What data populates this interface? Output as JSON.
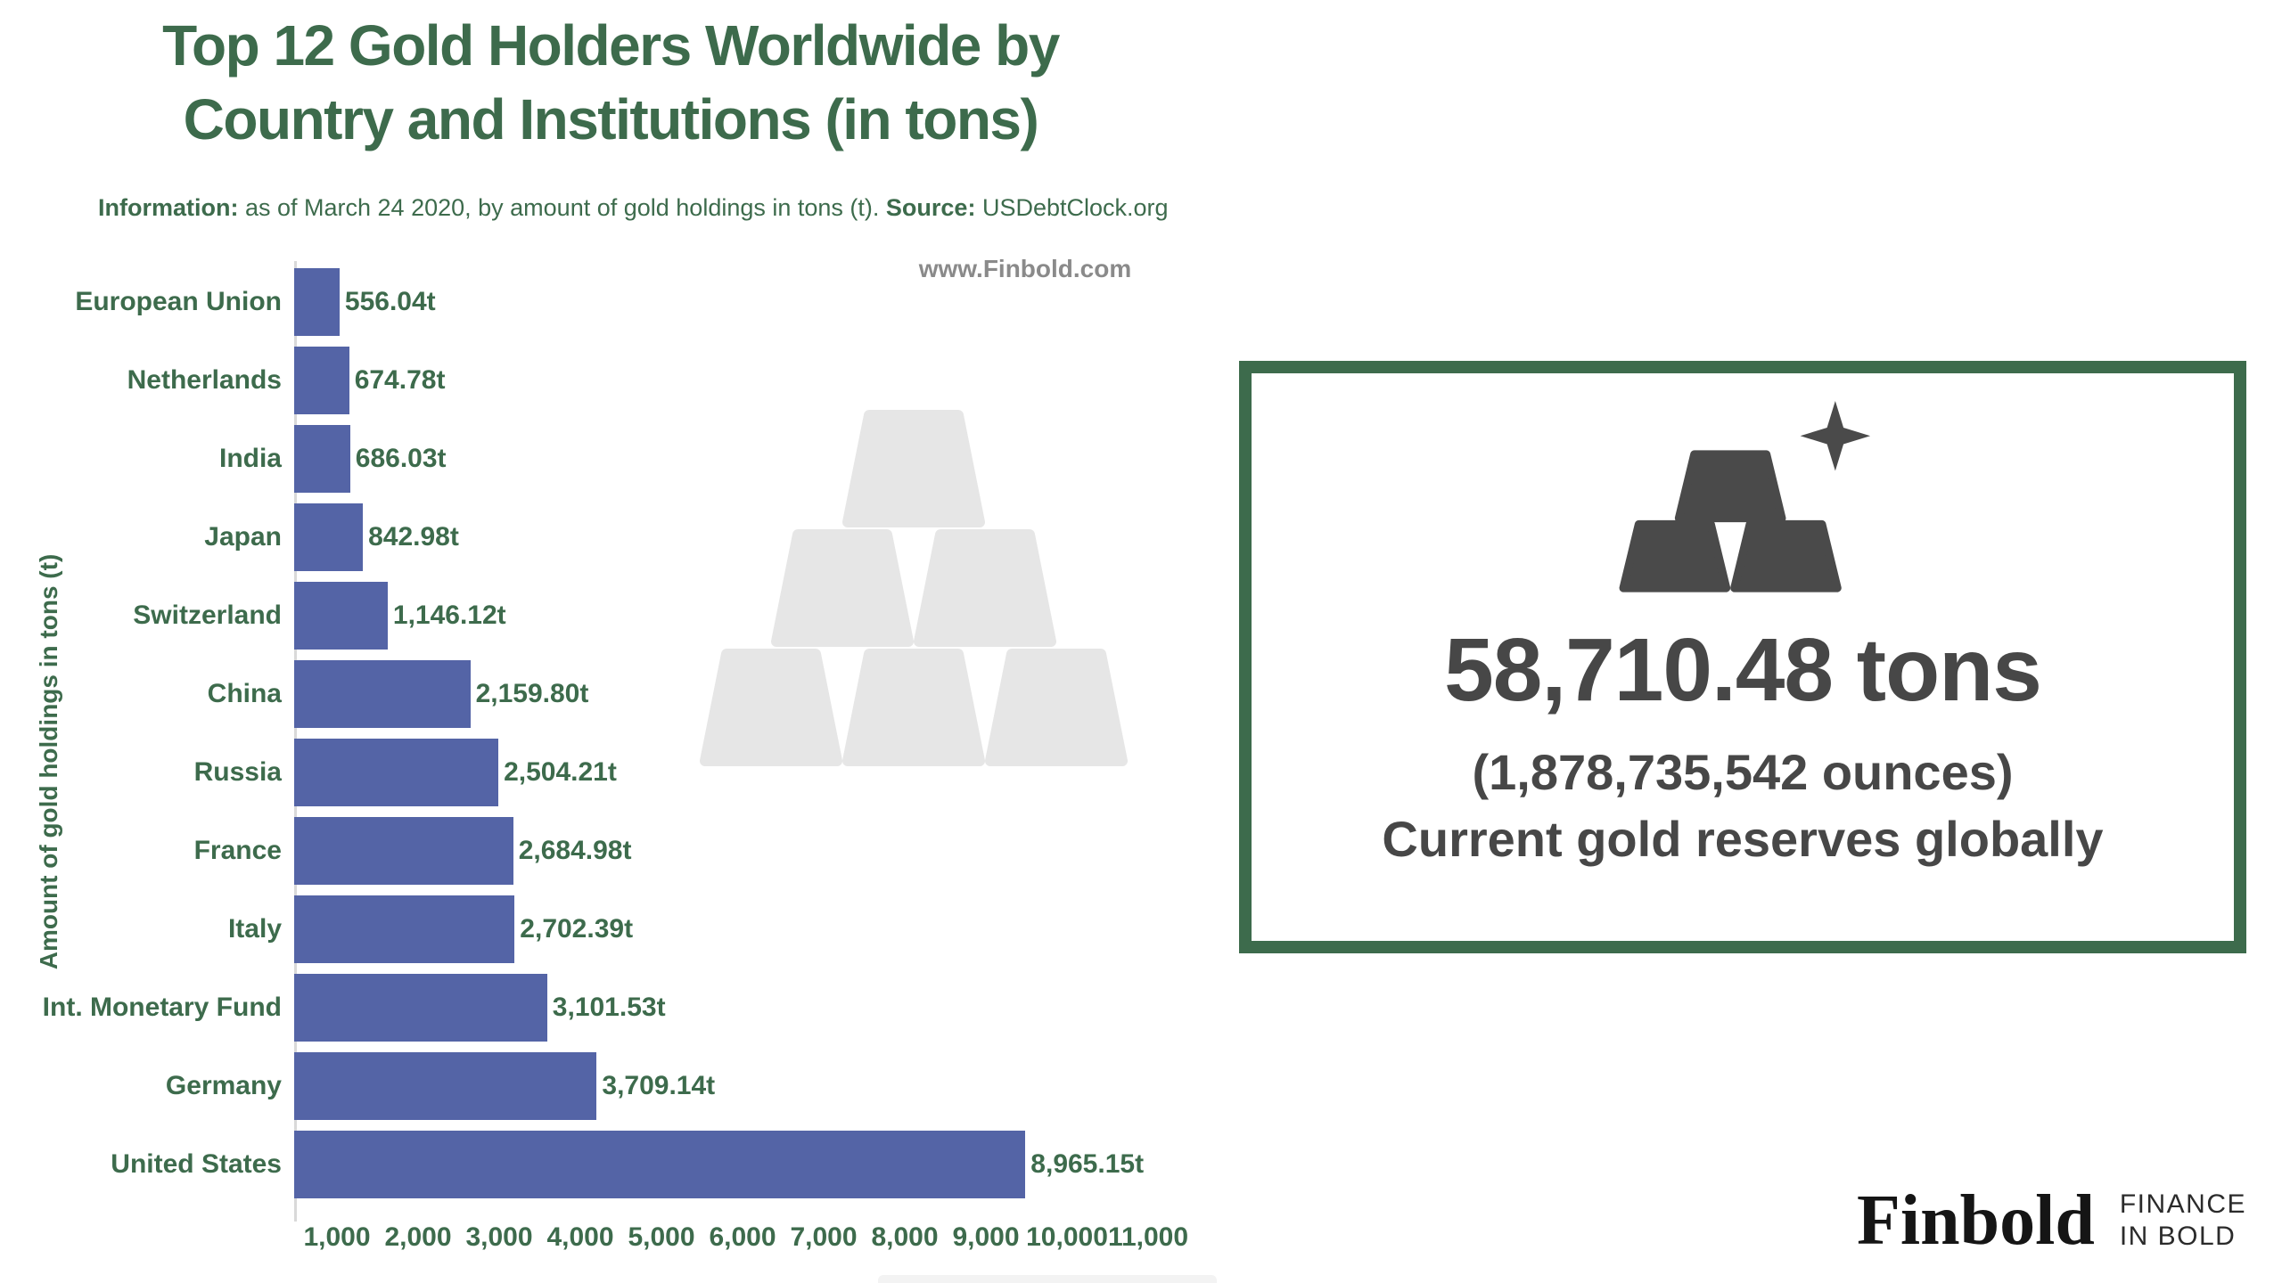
{
  "title": {
    "line1": "Top 12 Gold Holders Worldwide by",
    "line2": "Country and Institutions (in tons)"
  },
  "subtitle": {
    "info_label": "Information:",
    "info_text": " as of March 24 2020, by amount of gold holdings in tons (t). ",
    "source_label": "Source:",
    "source_text": " USDebtClock.org"
  },
  "site_watermark": "www.Finbold.com",
  "chart_data": {
    "type": "bar",
    "orientation": "horizontal",
    "title": "Top 12 Gold Holders Worldwide by Country and Institutions (in tons)",
    "ylabel": "Amount of gold holdings in tons (t)",
    "xlabel": "",
    "categories": [
      "European Union",
      "Netherlands",
      "India",
      "Japan",
      "Switzerland",
      "China",
      "Russia",
      "France",
      "Italy",
      "Int. Monetary Fund",
      "Germany",
      "United States"
    ],
    "values": [
      556.04,
      674.78,
      686.03,
      842.98,
      1146.12,
      2159.8,
      2504.21,
      2684.98,
      2702.39,
      3101.53,
      3709.14,
      8965.15
    ],
    "value_labels": [
      "556.04t",
      "674.78t",
      "686.03t",
      "842.98t",
      "1,146.12t",
      "2,159.80t",
      "2,504.21t",
      "2,684.98t",
      "2,702.39t",
      "3,101.53t",
      "3,709.14t",
      "8,965.15t"
    ],
    "x_ticks": [
      "1,000",
      "2,000",
      "3,000",
      "4,000",
      "5,000",
      "6,000",
      "7,000",
      "8,000",
      "9,000",
      "10,000",
      "11,000"
    ],
    "xlim": [
      0,
      11300
    ],
    "grid": false,
    "legend": false,
    "bar_color": "#5464a6",
    "label_color": "#3d6b4c"
  },
  "reserves_panel": {
    "tons": "58,710.48 tons",
    "ounces": "(1,878,735,542 ounces)",
    "caption": "Current gold reserves globally",
    "icon": "gold-bars-with-sparkle",
    "border_color": "#3d6b4c",
    "text_color": "#474747"
  },
  "footer_logo": {
    "wordmark": "Finbold",
    "tagline_line1": "FINANCE",
    "tagline_line2": "IN BOLD"
  },
  "colors": {
    "accent_green": "#3d6b4c",
    "bar_blue": "#5464a6",
    "watermark_gray": "#e6e6e6",
    "dark_gray": "#474747"
  }
}
